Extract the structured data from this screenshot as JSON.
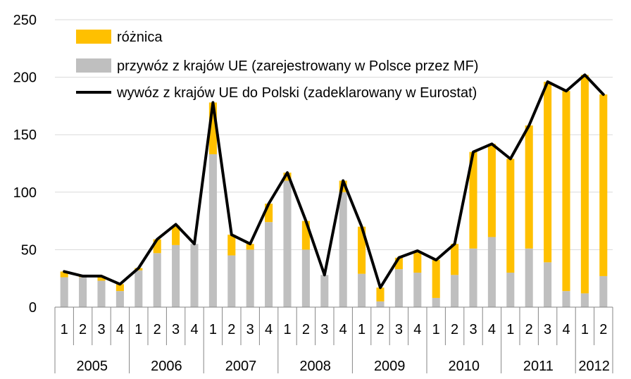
{
  "chart_data": {
    "type": "bar",
    "title": "",
    "xlabel": "",
    "ylabel": "",
    "ylim": [
      0,
      250
    ],
    "yticks": [
      0,
      50,
      100,
      150,
      200,
      250
    ],
    "grid": true,
    "legend_position": "top-left",
    "quarters": [
      "1",
      "2",
      "3",
      "4",
      "1",
      "2",
      "3",
      "4",
      "1",
      "2",
      "3",
      "4",
      "1",
      "2",
      "3",
      "4",
      "1",
      "2",
      "3",
      "4",
      "1",
      "2",
      "3",
      "4",
      "1",
      "2",
      "3",
      "4",
      "1",
      "2"
    ],
    "years": [
      {
        "label": "2005",
        "quarters": 4
      },
      {
        "label": "2006",
        "quarters": 4
      },
      {
        "label": "2007",
        "quarters": 4
      },
      {
        "label": "2008",
        "quarters": 4
      },
      {
        "label": "2009",
        "quarters": 4
      },
      {
        "label": "2010",
        "quarters": 4
      },
      {
        "label": "2011",
        "quarters": 4
      },
      {
        "label": "2012",
        "quarters": 2
      }
    ],
    "series": [
      {
        "name": "przywóz z krajów UE (zarejestrowany w Polsce przez MF)",
        "kind": "bar",
        "color": "#bfbfbf",
        "values": [
          26,
          26,
          23,
          14,
          32,
          47,
          54,
          55,
          133,
          45,
          50,
          74,
          110,
          50,
          28,
          100,
          29,
          5,
          33,
          30,
          8,
          28,
          51,
          61,
          30,
          51,
          39,
          14,
          12,
          27
        ]
      },
      {
        "name": "różnica",
        "kind": "bar",
        "color": "#ffc000",
        "values": [
          5,
          1,
          4,
          6,
          2,
          12,
          17,
          0,
          45,
          18,
          5,
          16,
          7,
          25,
          0,
          10,
          41,
          12,
          10,
          19,
          33,
          27,
          84,
          81,
          99,
          107,
          157,
          174,
          190,
          158
        ]
      },
      {
        "name": "wywóz z krajów UE do Polski (zadeklarowany w Eurostat)",
        "kind": "line",
        "color": "#000000",
        "values": [
          31,
          27,
          27,
          20,
          34,
          59,
          72,
          55,
          178,
          63,
          55,
          90,
          117,
          75,
          28,
          110,
          70,
          17,
          43,
          49,
          41,
          55,
          135,
          142,
          129,
          158,
          196,
          188,
          202,
          185
        ]
      }
    ],
    "legend": [
      "różnica",
      "przywóz z krajów UE (zarejestrowany w Polsce przez MF)",
      "wywóz z krajów UE do Polski (zadeklarowany w Eurostat)"
    ]
  }
}
